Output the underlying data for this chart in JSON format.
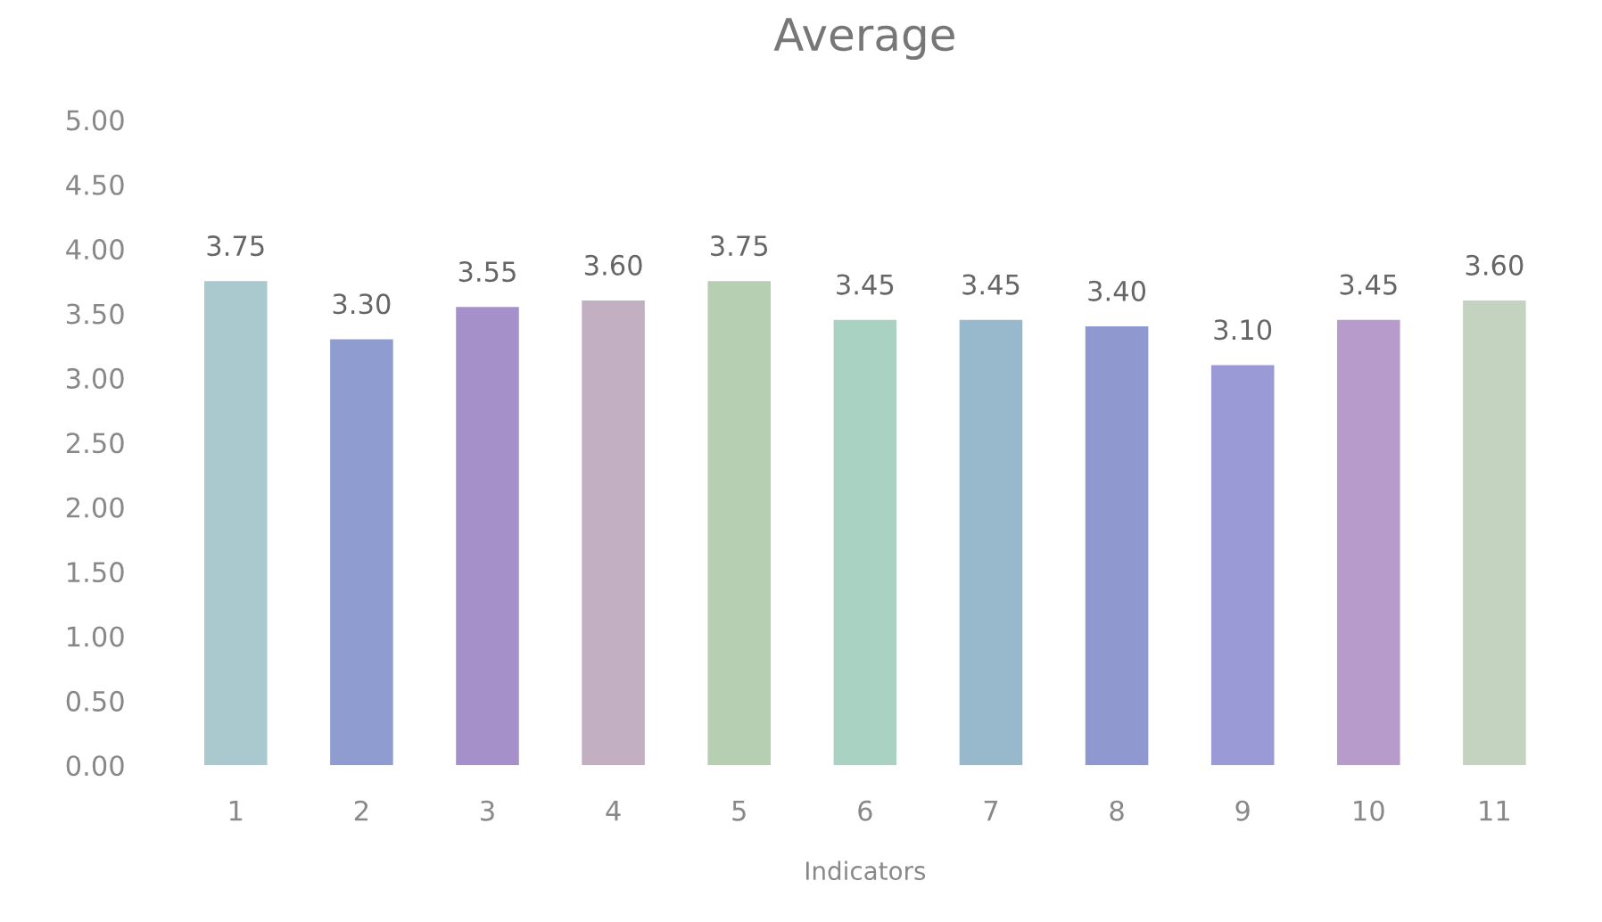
{
  "chart_data": {
    "type": "bar",
    "title": "Average",
    "xlabel": "Indicators",
    "categories": [
      "1",
      "2",
      "3",
      "4",
      "5",
      "6",
      "7",
      "8",
      "9",
      "10",
      "11"
    ],
    "values": [
      3.75,
      3.3,
      3.55,
      3.6,
      3.75,
      3.45,
      3.45,
      3.4,
      3.1,
      3.45,
      3.6
    ],
    "value_labels": [
      "3.75",
      "3.30",
      "3.55",
      "3.60",
      "3.75",
      "3.45",
      "3.45",
      "3.40",
      "3.10",
      "3.45",
      "3.60"
    ],
    "colors": [
      "#a9c9cf",
      "#8f9ccf",
      "#a690c9",
      "#c2b0c2",
      "#b6cfb2",
      "#a9d2c3",
      "#98b9cc",
      "#8f98cf",
      "#9a9ad6",
      "#b79ccb",
      "#c4d3c0"
    ],
    "ylim": [
      0,
      5
    ],
    "yticks": [
      {
        "value": 0,
        "label": "0.00"
      },
      {
        "value": 0.5,
        "label": "0.50"
      },
      {
        "value": 1,
        "label": "1.00"
      },
      {
        "value": 1.5,
        "label": "1.50"
      },
      {
        "value": 2,
        "label": "2.00"
      },
      {
        "value": 2.5,
        "label": "2.50"
      },
      {
        "value": 3,
        "label": "3.00"
      },
      {
        "value": 3.5,
        "label": "3.50"
      },
      {
        "value": 4,
        "label": "4.00"
      },
      {
        "value": 4.5,
        "label": "4.50"
      },
      {
        "value": 5,
        "label": "5.00"
      }
    ],
    "grid": false,
    "legend": false
  }
}
